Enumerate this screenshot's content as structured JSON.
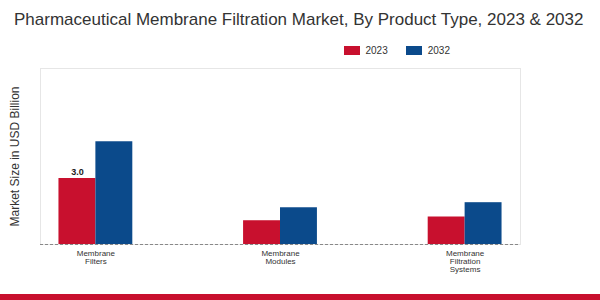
{
  "chart_data": {
    "type": "bar",
    "title": "Pharmaceutical Membrane Filtration Market, By Product Type, 2023 & 2032",
    "ylabel": "Market Size in USD Billion",
    "categories": [
      "Membrane Filters",
      "Membrane Modules",
      "Membrane Filtration Systems"
    ],
    "series": [
      {
        "name": "2023",
        "color": "#c8102e",
        "values": [
          3.0,
          1.08,
          1.25
        ],
        "value_labels": [
          "3.0",
          null,
          null
        ]
      },
      {
        "name": "2032",
        "color": "#0b4a8b",
        "values": [
          4.67,
          1.67,
          1.9
        ]
      }
    ],
    "ylim": [
      0,
      8
    ],
    "yticks": [],
    "tick_labels": "x",
    "data_labels": true,
    "legend": "top-right"
  }
}
